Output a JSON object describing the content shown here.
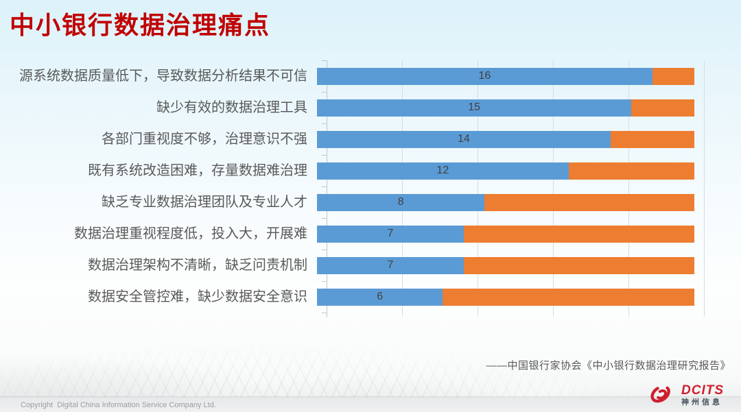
{
  "title": {
    "text": "中小银行数据治理痛点"
  },
  "chart_data": {
    "type": "bar",
    "orientation": "horizontal",
    "stacked": true,
    "title": "",
    "xlabel": "",
    "ylabel": "",
    "xlim": [
      0,
      18
    ],
    "legend": "none",
    "gridlines": {
      "count": 5,
      "color": "#d6dcde"
    },
    "categories": [
      "源系统数据质量低下，导致数据分析结果不可信",
      "缺少有效的数据治理工具",
      "各部门重视度不够，治理意识不强",
      "既有系统改造困难，存量数据难治理",
      "缺乏专业数据治理团队及专业人才",
      "数据治理重视程度低，投入大，开展难",
      "数据治理架构不清晰，缺乏问责机制",
      "数据安全管控难，缺少数据安全意识"
    ],
    "series": [
      {
        "name": "blue",
        "color": "#5B9BD5",
        "values": [
          16,
          15,
          14,
          12,
          8,
          7,
          7,
          6
        ],
        "data_labels": true
      },
      {
        "name": "orange",
        "color": "#ED7D31",
        "values": [
          2,
          3,
          4,
          6,
          10,
          11,
          11,
          12
        ],
        "data_labels": false
      }
    ],
    "value_label_color": "#404040"
  },
  "source": {
    "text": "——中国银行家协会《中小银行数据治理研究报告》"
  },
  "footer": {
    "copyright": "Copyright  Digital China Information Service Company Ltd.",
    "logo_text": "DCITS",
    "logo_subtext": "神州信息"
  },
  "colors": {
    "title_red": "#C00000",
    "bar_blue": "#5B9BD5",
    "bar_orange": "#ED7D31"
  }
}
